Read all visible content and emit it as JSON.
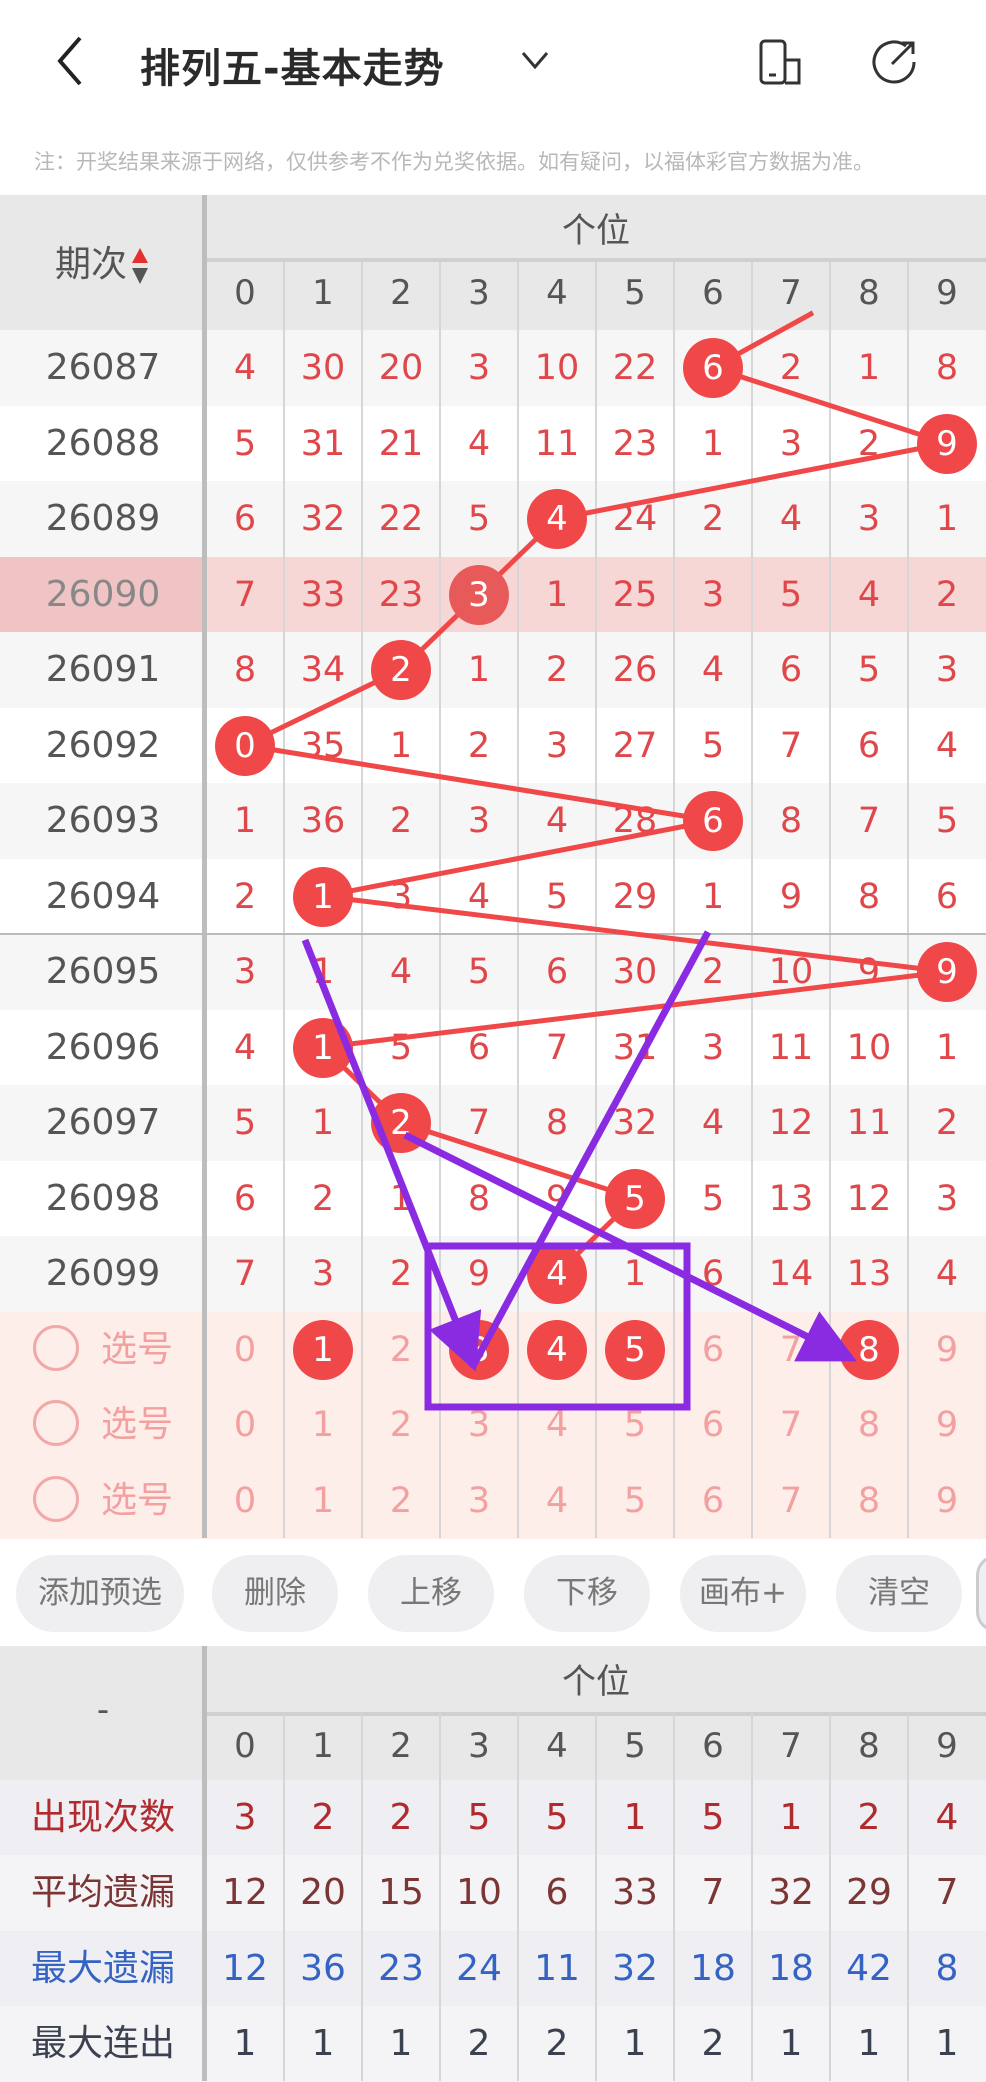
{
  "header": {
    "title": "排列五-基本走势",
    "back_icon": "back-arrow-icon",
    "dropdown_icon": "chevron-down-icon",
    "icons": [
      "device-icon",
      "share-icon"
    ]
  },
  "note": "注：开奖结果来源于网络，仅供参考不作为兑奖依据。如有疑问，以福体彩官方数据为准。",
  "trend_table": {
    "period_header": "期次",
    "group_header": "个位",
    "digits": [
      "0",
      "1",
      "2",
      "3",
      "4",
      "5",
      "6",
      "7",
      "8",
      "9"
    ],
    "highlight_period": "26090",
    "rows": [
      {
        "period": "26087",
        "cells": [
          "4",
          "30",
          "20",
          "3",
          "10",
          "22",
          "6",
          "2",
          "1",
          "8"
        ],
        "hit": 6
      },
      {
        "period": "26088",
        "cells": [
          "5",
          "31",
          "21",
          "4",
          "11",
          "23",
          "1",
          "3",
          "2",
          "9"
        ],
        "hit": 9
      },
      {
        "period": "26089",
        "cells": [
          "6",
          "32",
          "22",
          "5",
          "4",
          "24",
          "2",
          "4",
          "3",
          "1"
        ],
        "hit": 4
      },
      {
        "period": "26090",
        "cells": [
          "7",
          "33",
          "23",
          "3",
          "1",
          "25",
          "3",
          "5",
          "4",
          "2"
        ],
        "hit": 3
      },
      {
        "period": "26091",
        "cells": [
          "8",
          "34",
          "2",
          "1",
          "2",
          "26",
          "4",
          "6",
          "5",
          "3"
        ],
        "hit": 2
      },
      {
        "period": "26092",
        "cells": [
          "0",
          "35",
          "1",
          "2",
          "3",
          "27",
          "5",
          "7",
          "6",
          "4"
        ],
        "hit": 0
      },
      {
        "period": "26093",
        "cells": [
          "1",
          "36",
          "2",
          "3",
          "4",
          "28",
          "6",
          "8",
          "7",
          "5"
        ],
        "hit": 6
      },
      {
        "period": "26094",
        "cells": [
          "2",
          "1",
          "3",
          "4",
          "5",
          "29",
          "1",
          "9",
          "8",
          "6"
        ],
        "hit": 1
      },
      {
        "period": "26095",
        "cells": [
          "3",
          "1",
          "4",
          "5",
          "6",
          "30",
          "2",
          "10",
          "9",
          "9"
        ],
        "hit": 9
      },
      {
        "period": "26096",
        "cells": [
          "4",
          "1",
          "5",
          "6",
          "7",
          "31",
          "3",
          "11",
          "10",
          "1"
        ],
        "hit": 1
      },
      {
        "period": "26097",
        "cells": [
          "5",
          "1",
          "2",
          "7",
          "8",
          "32",
          "4",
          "12",
          "11",
          "2"
        ],
        "hit": 2
      },
      {
        "period": "26098",
        "cells": [
          "6",
          "2",
          "1",
          "8",
          "9",
          "5",
          "5",
          "13",
          "12",
          "3"
        ],
        "hit": 5
      },
      {
        "period": "26099",
        "cells": [
          "7",
          "3",
          "2",
          "9",
          "4",
          "1",
          "6",
          "14",
          "13",
          "4"
        ],
        "hit": 4
      }
    ],
    "pick_rows": [
      {
        "label": "选号",
        "selected": [
          1,
          3,
          4,
          5,
          8
        ]
      },
      {
        "label": "选号",
        "selected": []
      },
      {
        "label": "选号",
        "selected": []
      }
    ]
  },
  "toolbar": {
    "buttons": [
      "添加预选",
      "删除",
      "上移",
      "下移",
      "画布+",
      "清空"
    ]
  },
  "stats_table": {
    "corner": "-",
    "group_header": "个位",
    "digits": [
      "0",
      "1",
      "2",
      "3",
      "4",
      "5",
      "6",
      "7",
      "8",
      "9"
    ],
    "rows": [
      {
        "label": "出现次数",
        "color": "#b02a2e",
        "values": [
          "3",
          "2",
          "2",
          "5",
          "5",
          "1",
          "5",
          "1",
          "2",
          "4"
        ]
      },
      {
        "label": "平均遗漏",
        "color": "#7a3534",
        "values": [
          "12",
          "20",
          "15",
          "10",
          "6",
          "33",
          "7",
          "32",
          "29",
          "7"
        ]
      },
      {
        "label": "最大遗漏",
        "color": "#3563c4",
        "values": [
          "12",
          "36",
          "23",
          "24",
          "11",
          "32",
          "18",
          "18",
          "42",
          "8"
        ]
      },
      {
        "label": "最大连出",
        "color": "#3b4150",
        "values": [
          "1",
          "1",
          "1",
          "2",
          "2",
          "1",
          "2",
          "1",
          "1",
          "1"
        ]
      }
    ]
  },
  "colors": {
    "ball": "#f04848",
    "annotation": "#8a2be2",
    "highlight_row": "#f7d6d6",
    "pick_bg": "#fdeee9"
  }
}
